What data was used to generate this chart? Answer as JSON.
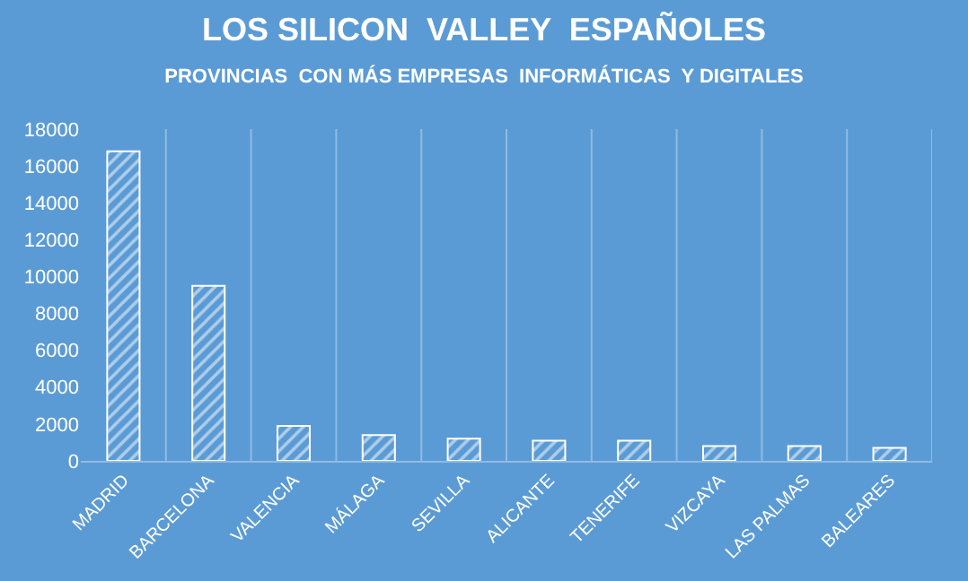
{
  "chart_data": {
    "type": "bar",
    "title": "LOS SILICON  VALLEY  ESPAÑOLES",
    "subtitle": "PROVINCIAS  CON MÁS EMPRESAS  INFORMÁTICAS  Y DIGITALES",
    "categories": [
      "MADRID",
      "BARCELONA",
      "VALENCIA",
      "MÁLAGA",
      "SEVILLA",
      "ALICANTE",
      "TENERIFE",
      "VIZCAYA",
      "LAS PALMAS",
      "BALEARES"
    ],
    "values": [
      16800,
      9500,
      1900,
      1400,
      1200,
      1100,
      1100,
      800,
      800,
      700
    ],
    "color": "#ffffff",
    "ylim": [
      0,
      18000
    ],
    "yticks": [
      0,
      2000,
      4000,
      6000,
      8000,
      10000,
      12000,
      14000,
      16000,
      18000
    ],
    "grid": "x",
    "legend": false
  }
}
